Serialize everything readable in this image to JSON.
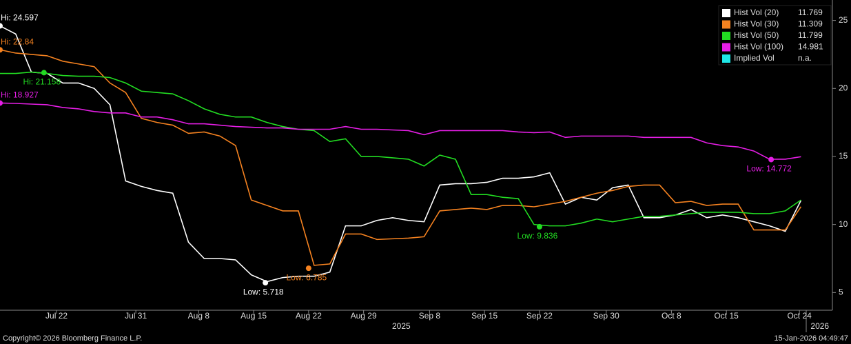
{
  "chart_data": {
    "type": "line",
    "x": [
      0,
      2,
      4,
      6,
      8,
      10,
      12,
      14,
      16,
      18,
      20,
      22,
      24,
      26,
      28,
      30,
      32,
      34,
      36,
      38,
      40,
      42,
      44,
      46,
      48,
      50,
      52,
      54,
      56,
      58,
      60,
      62,
      64,
      66,
      68,
      70,
      72,
      74,
      76,
      78,
      80,
      82,
      84,
      86,
      88,
      90,
      92,
      94,
      96,
      98,
      100,
      102
    ],
    "xlim": [
      0,
      106
    ],
    "xticks": [
      {
        "value": 7.2,
        "label": "Jul 22"
      },
      {
        "value": 17.3,
        "label": "Jul 31"
      },
      {
        "value": 25.3,
        "label": "Aug 8"
      },
      {
        "value": 32.3,
        "label": "Aug 15"
      },
      {
        "value": 39.3,
        "label": "Aug 22"
      },
      {
        "value": 46.3,
        "label": "Aug 29"
      },
      {
        "value": 54.7,
        "label": "Sep 8"
      },
      {
        "value": 61.7,
        "label": "Sep 15"
      },
      {
        "value": 68.7,
        "label": "Sep 22"
      },
      {
        "value": 77.2,
        "label": "Sep 30"
      },
      {
        "value": 85.5,
        "label": "Oct 8"
      },
      {
        "value": 92.5,
        "label": "Oct 15"
      },
      {
        "value": 101.8,
        "label": "Oct 24"
      }
    ],
    "x_year_labels": [
      {
        "value": 51.1,
        "label": "2025"
      },
      {
        "value": 104.4,
        "label": "2026"
      }
    ],
    "ylim": [
      3.7,
      26.5
    ],
    "yticks": [
      5,
      10,
      15,
      20,
      25
    ],
    "grid": false,
    "legend": "top-right",
    "series": [
      {
        "name": "Hist Vol (20)",
        "color": "#ffffff",
        "last_label": "11.769",
        "values": [
          24.597,
          24.0,
          21.2,
          21.1,
          20.4,
          20.4,
          20.0,
          18.8,
          13.2,
          12.8,
          12.5,
          12.3,
          8.7,
          7.5,
          7.5,
          7.4,
          6.3,
          5.8,
          6.1,
          6.2,
          6.2,
          6.5,
          9.9,
          9.9,
          10.3,
          10.5,
          10.3,
          10.2,
          12.9,
          13.0,
          13.0,
          13.1,
          13.4,
          13.4,
          13.5,
          13.8,
          11.5,
          12.0,
          11.8,
          12.7,
          12.9,
          10.5,
          10.5,
          10.7,
          11.1,
          10.5,
          10.7,
          10.5,
          10.2,
          9.9,
          9.5,
          11.769
        ]
      },
      {
        "name": "Hist Vol (30)",
        "color": "#f58220",
        "last_label": "11.309",
        "values": [
          22.84,
          22.6,
          22.5,
          22.4,
          22.0,
          21.8,
          21.6,
          20.4,
          19.7,
          17.8,
          17.5,
          17.3,
          16.7,
          16.8,
          16.5,
          15.8,
          11.8,
          11.4,
          11.0,
          11.0,
          7.0,
          7.1,
          9.3,
          9.3,
          8.9,
          8.95,
          9.0,
          9.1,
          11.0,
          11.1,
          11.2,
          11.1,
          11.4,
          11.4,
          11.3,
          11.5,
          11.7,
          12.0,
          12.3,
          12.5,
          12.8,
          12.9,
          12.9,
          11.6,
          11.7,
          11.4,
          11.5,
          11.5,
          9.6,
          9.6,
          9.6,
          11.309
        ]
      },
      {
        "name": "Hist Vol (50)",
        "color": "#22dd22",
        "last_label": "11.799",
        "values": [
          21.1,
          21.1,
          21.2,
          21.1,
          20.95,
          20.9,
          20.9,
          20.8,
          20.4,
          19.8,
          19.7,
          19.6,
          19.1,
          18.5,
          18.1,
          17.9,
          17.9,
          17.5,
          17.2,
          17.0,
          16.9,
          16.1,
          16.3,
          15.0,
          15.0,
          14.9,
          14.8,
          14.3,
          15.1,
          14.8,
          12.2,
          12.2,
          12.0,
          11.9,
          10.0,
          9.9,
          9.9,
          10.1,
          10.4,
          10.2,
          10.4,
          10.6,
          10.6,
          10.7,
          10.8,
          10.9,
          10.9,
          10.9,
          10.8,
          10.8,
          11.0,
          11.799
        ]
      },
      {
        "name": "Hist Vol (100)",
        "color": "#e61ee6",
        "last_label": "14.981",
        "values": [
          18.927,
          18.9,
          18.85,
          18.8,
          18.6,
          18.5,
          18.3,
          18.2,
          18.2,
          17.9,
          17.9,
          17.7,
          17.4,
          17.4,
          17.3,
          17.2,
          17.15,
          17.1,
          17.1,
          17.0,
          17.0,
          17.0,
          17.2,
          17.0,
          17.0,
          16.95,
          16.9,
          16.6,
          16.9,
          16.9,
          16.9,
          16.9,
          16.9,
          16.8,
          16.75,
          16.8,
          16.4,
          16.5,
          16.5,
          16.5,
          16.5,
          16.4,
          16.4,
          16.4,
          16.4,
          16.0,
          15.8,
          15.7,
          15.4,
          14.8,
          14.8,
          14.981
        ]
      },
      {
        "name": "Implied Vol",
        "color": "#1ee6e6",
        "last_label": "n.a.",
        "values": [
          null,
          null,
          null,
          null,
          null,
          null,
          null,
          null,
          null,
          null,
          null,
          null,
          null,
          null,
          null,
          null,
          null,
          null,
          null,
          null,
          null,
          null,
          null,
          null,
          null,
          null,
          null,
          null,
          null,
          null,
          null,
          null,
          null,
          null,
          null,
          null,
          null,
          null,
          null,
          null,
          null,
          null,
          null,
          null,
          null,
          null,
          null,
          null,
          null,
          null,
          null,
          null
        ]
      }
    ],
    "annotations": [
      {
        "series": 0,
        "label": "Hi: 24.597",
        "x": 0,
        "y": 24.597
      },
      {
        "series": 1,
        "label": "Hi: 22.84",
        "x": 0,
        "y": 22.84
      },
      {
        "series": 2,
        "label": "Hi: 21.158",
        "x": 5.6,
        "y": 21.158
      },
      {
        "series": 3,
        "label": "Hi: 18.927",
        "x": 0,
        "y": 18.927
      },
      {
        "series": 0,
        "label": "Low: 5.718",
        "x": 33.8,
        "y": 5.718
      },
      {
        "series": 1,
        "label": "Low: 6.785",
        "x": 39.3,
        "y": 6.785
      },
      {
        "series": 2,
        "label": "Low: 9.836",
        "x": 68.7,
        "y": 9.836
      },
      {
        "series": 3,
        "label": "Low: 14.772",
        "x": 98.2,
        "y": 14.772
      }
    ],
    "footer_left": "Copyright© 2026 Bloomberg Finance L.P.",
    "footer_right": "15-Jan-2026 04:49:47"
  }
}
